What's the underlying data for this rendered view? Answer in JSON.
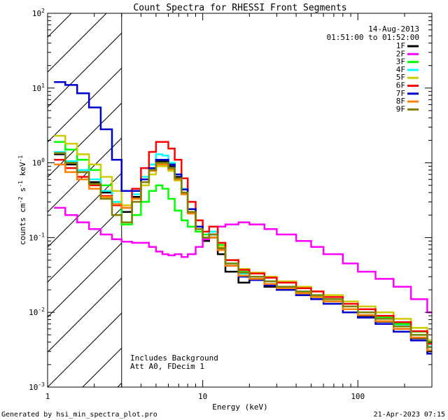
{
  "chart_data": {
    "type": "line",
    "title": "Count Spectra for RHESSI Front Segments",
    "date": "14-Aug-2013",
    "time_range": "01:51:00 to 01:52:00",
    "xlabel": "Energy (keV)",
    "ylabel_parts": [
      "counts cm",
      "-2",
      " s",
      "-1",
      " keV",
      "-1"
    ],
    "x_scale": "log",
    "y_scale": "log",
    "xlim": [
      1,
      300
    ],
    "ylim": [
      0.001,
      100
    ],
    "x_ticks": [
      1,
      10,
      100
    ],
    "x_tick_labels": [
      "1",
      "10",
      "100"
    ],
    "y_ticks": [
      0.001,
      0.01,
      0.1,
      1,
      10,
      100
    ],
    "y_tick_labels": [
      [
        "10",
        "-3"
      ],
      [
        "10",
        "-2"
      ],
      [
        "10",
        "-1"
      ],
      [
        "10",
        "0"
      ],
      [
        "10",
        "1"
      ],
      [
        "10",
        "2"
      ]
    ],
    "hatched_region_max_keV": 3,
    "annotation": [
      "Includes Background",
      "Att A0, FDecim 1"
    ],
    "footer_left": "Generated by hsi_min_spectra_plot.pro",
    "footer_right": "21-Apr-2023 07:15",
    "series": [
      {
        "name": "1F",
        "color": "#000000",
        "x": [
          1.1,
          1.3,
          1.55,
          1.85,
          2.2,
          2.6,
          3.0,
          3.5,
          4.0,
          4.5,
          5.0,
          5.5,
          6.0,
          6.6,
          7.3,
          8.0,
          9.0,
          10.0,
          11.0,
          12.5,
          14,
          17,
          20,
          25,
          30,
          40,
          50,
          60,
          80,
          100,
          130,
          170,
          220,
          280
        ],
        "y": [
          1.3,
          0.95,
          0.75,
          0.55,
          0.4,
          0.28,
          0.22,
          0.35,
          0.55,
          0.8,
          1.05,
          1.05,
          0.9,
          0.65,
          0.4,
          0.22,
          0.13,
          0.09,
          0.1,
          0.06,
          0.035,
          0.025,
          0.028,
          0.022,
          0.02,
          0.017,
          0.016,
          0.014,
          0.011,
          0.009,
          0.0075,
          0.006,
          0.0045,
          0.003
        ]
      },
      {
        "name": "2F",
        "color": "#ff00ff",
        "x": [
          1.1,
          1.3,
          1.55,
          1.85,
          2.2,
          2.6,
          3.0,
          3.5,
          4.0,
          4.5,
          5.0,
          5.5,
          6.0,
          6.6,
          7.3,
          8.0,
          9.0,
          10.0,
          11.0,
          12.5,
          14,
          17,
          20,
          25,
          30,
          40,
          50,
          60,
          80,
          100,
          130,
          170,
          220,
          280
        ],
        "y": [
          0.25,
          0.2,
          0.16,
          0.13,
          0.11,
          0.095,
          0.088,
          0.085,
          0.085,
          0.075,
          0.065,
          0.06,
          0.058,
          0.06,
          0.055,
          0.06,
          0.075,
          0.095,
          0.12,
          0.14,
          0.15,
          0.16,
          0.15,
          0.13,
          0.11,
          0.09,
          0.075,
          0.06,
          0.045,
          0.035,
          0.028,
          0.022,
          0.015,
          0.01
        ]
      },
      {
        "name": "3F",
        "color": "#00ff00",
        "x": [
          1.1,
          1.3,
          1.55,
          1.85,
          2.2,
          2.6,
          3.0,
          3.5,
          4.0,
          4.5,
          5.0,
          5.5,
          6.0,
          6.6,
          7.3,
          8.0,
          9.0,
          10.0,
          11.0,
          12.5,
          14,
          17,
          20,
          25,
          30,
          40,
          50,
          60,
          80,
          100,
          130,
          170,
          220,
          280
        ],
        "y": [
          1.9,
          1.5,
          1.1,
          0.8,
          0.5,
          0.3,
          0.15,
          0.2,
          0.3,
          0.42,
          0.5,
          0.45,
          0.33,
          0.23,
          0.17,
          0.14,
          0.12,
          0.11,
          0.12,
          0.08,
          0.05,
          0.035,
          0.03,
          0.026,
          0.021,
          0.018,
          0.016,
          0.014,
          0.012,
          0.01,
          0.0085,
          0.007,
          0.0055,
          0.004
        ]
      },
      {
        "name": "4F",
        "color": "#00ffff",
        "x": [
          1.1,
          1.3,
          1.55,
          1.85,
          2.2,
          2.6,
          3.0,
          3.5,
          4.0,
          4.5,
          5.0,
          5.5,
          6.0,
          6.6,
          7.3,
          8.0,
          9.0,
          10.0,
          11.0,
          12.5,
          14,
          17,
          20,
          25,
          30,
          40,
          50,
          60,
          80,
          100,
          130,
          170,
          220,
          280
        ],
        "y": [
          1.4,
          1.05,
          0.8,
          0.6,
          0.42,
          0.3,
          0.25,
          0.38,
          0.65,
          0.95,
          1.3,
          1.25,
          1.0,
          0.7,
          0.45,
          0.24,
          0.14,
          0.1,
          0.12,
          0.07,
          0.045,
          0.033,
          0.03,
          0.026,
          0.022,
          0.019,
          0.017,
          0.015,
          0.012,
          0.01,
          0.0082,
          0.0066,
          0.005,
          0.0035
        ]
      },
      {
        "name": "5F",
        "color": "#cccc00",
        "x": [
          1.1,
          1.3,
          1.55,
          1.85,
          2.2,
          2.6,
          3.0,
          3.5,
          4.0,
          4.5,
          5.0,
          5.5,
          6.0,
          6.6,
          7.3,
          8.0,
          9.0,
          10.0,
          11.0,
          12.5,
          14,
          17,
          20,
          25,
          30,
          40,
          50,
          60,
          80,
          100,
          130,
          170,
          220,
          280
        ],
        "y": [
          2.3,
          1.8,
          1.3,
          0.95,
          0.65,
          0.42,
          0.27,
          0.33,
          0.5,
          0.7,
          0.9,
          0.9,
          0.78,
          0.58,
          0.38,
          0.22,
          0.14,
          0.1,
          0.11,
          0.075,
          0.05,
          0.038,
          0.034,
          0.03,
          0.026,
          0.022,
          0.019,
          0.017,
          0.014,
          0.012,
          0.01,
          0.0082,
          0.0062,
          0.0042
        ]
      },
      {
        "name": "6F",
        "color": "#ff0000",
        "x": [
          1.1,
          1.3,
          1.55,
          1.85,
          2.2,
          2.6,
          3.0,
          3.5,
          4.0,
          4.5,
          5.0,
          5.5,
          6.0,
          6.6,
          7.3,
          8.0,
          9.0,
          10.0,
          11.0,
          12.5,
          14,
          17,
          20,
          25,
          30,
          40,
          50,
          60,
          80,
          100,
          130,
          170,
          220,
          280
        ],
        "y": [
          1.1,
          0.85,
          0.65,
          0.5,
          0.36,
          0.27,
          0.25,
          0.45,
          0.85,
          1.4,
          1.9,
          1.9,
          1.55,
          1.1,
          0.62,
          0.3,
          0.17,
          0.12,
          0.14,
          0.085,
          0.05,
          0.037,
          0.033,
          0.029,
          0.025,
          0.021,
          0.019,
          0.016,
          0.013,
          0.011,
          0.009,
          0.0074,
          0.0056,
          0.0038
        ]
      },
      {
        "name": "7F",
        "color": "#0000cc",
        "x": [
          1.1,
          1.3,
          1.55,
          1.85,
          2.2,
          2.6,
          3.0,
          3.5,
          4.0,
          4.5,
          5.0,
          5.5,
          6.0,
          6.6,
          7.3,
          8.0,
          9.0,
          10.0,
          11.0,
          12.5,
          14,
          17,
          20,
          25,
          30,
          40,
          50,
          60,
          80,
          100,
          130,
          170,
          220,
          280
        ],
        "y": [
          12,
          11,
          8.5,
          5.5,
          2.8,
          1.1,
          0.42,
          0.42,
          0.6,
          0.85,
          1.1,
          1.1,
          0.95,
          0.7,
          0.44,
          0.24,
          0.14,
          0.1,
          0.11,
          0.07,
          0.042,
          0.03,
          0.027,
          0.023,
          0.02,
          0.017,
          0.015,
          0.013,
          0.01,
          0.0085,
          0.007,
          0.0055,
          0.0042,
          0.0028
        ]
      },
      {
        "name": "8F",
        "color": "#ff8000",
        "x": [
          1.1,
          1.3,
          1.55,
          1.85,
          2.2,
          2.6,
          3.0,
          3.5,
          4.0,
          4.5,
          5.0,
          5.5,
          6.0,
          6.6,
          7.3,
          8.0,
          9.0,
          10.0,
          11.0,
          12.5,
          14,
          17,
          20,
          25,
          30,
          40,
          50,
          60,
          80,
          100,
          130,
          170,
          220,
          280
        ],
        "y": [
          0.95,
          0.75,
          0.6,
          0.45,
          0.35,
          0.28,
          0.25,
          0.33,
          0.55,
          0.78,
          0.95,
          0.95,
          0.82,
          0.6,
          0.38,
          0.21,
          0.13,
          0.1,
          0.1,
          0.068,
          0.042,
          0.031,
          0.028,
          0.024,
          0.021,
          0.018,
          0.016,
          0.014,
          0.011,
          0.0092,
          0.0076,
          0.006,
          0.0046,
          0.0031
        ]
      },
      {
        "name": "9F",
        "color": "#808000",
        "x": [
          1.1,
          1.3,
          1.55,
          1.85,
          2.2,
          2.6,
          3.0,
          3.5,
          4.0,
          4.5,
          5.0,
          5.5,
          6.0,
          6.6,
          7.3,
          8.0,
          9.0,
          10.0,
          11.0,
          12.5,
          14,
          17,
          20,
          25,
          30,
          40,
          50,
          60,
          80,
          100,
          130,
          170,
          220,
          280
        ],
        "y": [
          1.35,
          1.0,
          0.75,
          0.52,
          0.33,
          0.2,
          0.16,
          0.3,
          0.55,
          0.8,
          1.0,
          1.0,
          0.85,
          0.62,
          0.4,
          0.22,
          0.13,
          0.1,
          0.11,
          0.072,
          0.045,
          0.034,
          0.03,
          0.026,
          0.022,
          0.019,
          0.017,
          0.015,
          0.012,
          0.01,
          0.0082,
          0.0065,
          0.005,
          0.0034
        ]
      }
    ]
  }
}
